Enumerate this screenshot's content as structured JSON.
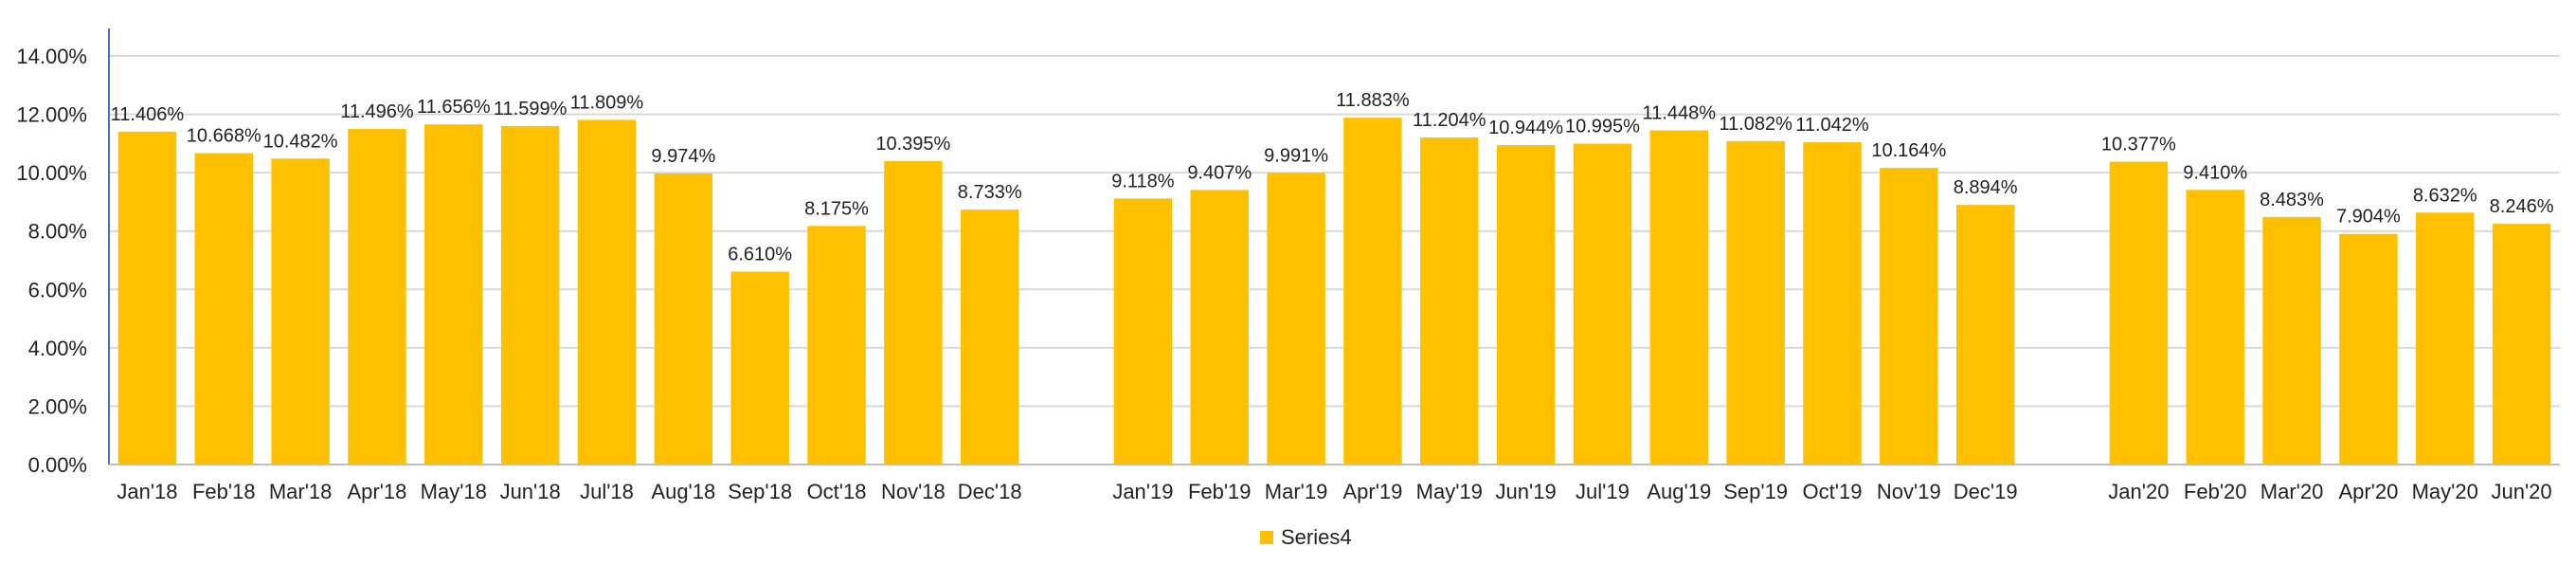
{
  "chart_data": {
    "type": "bar",
    "title": "",
    "xlabel": "",
    "ylabel": "",
    "ylim": [
      0,
      14
    ],
    "yticks": [
      "0.00%",
      "2.00%",
      "4.00%",
      "6.00%",
      "8.00%",
      "10.00%",
      "12.00%",
      "14.00%"
    ],
    "grid": true,
    "legend_position": "bottom",
    "bar_color": "#FFC000",
    "gridline_color": "#D9D9D9",
    "categories": [
      "Jan'18",
      "Feb'18",
      "Mar'18",
      "Apr'18",
      "May'18",
      "Jun'18",
      "Jul'18",
      "Aug'18",
      "Sep'18",
      "Oct'18",
      "Nov'18",
      "Dec'18",
      "",
      "Jan'19",
      "Feb'19",
      "Mar'19",
      "Apr'19",
      "May'19",
      "Jun'19",
      "Jul'19",
      "Aug'19",
      "Sep'19",
      "Oct'19",
      "Nov'19",
      "Dec'19",
      "",
      "Jan'20",
      "Feb'20",
      "Mar'20",
      "Apr'20",
      "May'20",
      "Jun'20"
    ],
    "series": [
      {
        "name": "Series4",
        "values": [
          11.406,
          10.668,
          10.482,
          11.496,
          11.656,
          11.599,
          11.809,
          9.974,
          6.61,
          8.175,
          10.395,
          8.733,
          null,
          9.118,
          9.407,
          9.991,
          11.883,
          11.204,
          10.944,
          10.995,
          11.448,
          11.082,
          11.042,
          10.164,
          8.894,
          null,
          10.377,
          9.41,
          8.483,
          7.904,
          8.632,
          8.246
        ],
        "labels": [
          "11.406%",
          "10.668%",
          "10.482%",
          "11.496%",
          "11.656%",
          "11.599%",
          "11.809%",
          "9.974%",
          "6.610%",
          "8.175%",
          "10.395%",
          "8.733%",
          "",
          "9.118%",
          "9.407%",
          "9.991%",
          "11.883%",
          "11.204%",
          "10.944%",
          "10.995%",
          "11.448%",
          "11.082%",
          "11.042%",
          "10.164%",
          "8.894%",
          "",
          "10.377%",
          "9.410%",
          "8.483%",
          "7.904%",
          "8.632%",
          "8.246%"
        ]
      }
    ]
  }
}
